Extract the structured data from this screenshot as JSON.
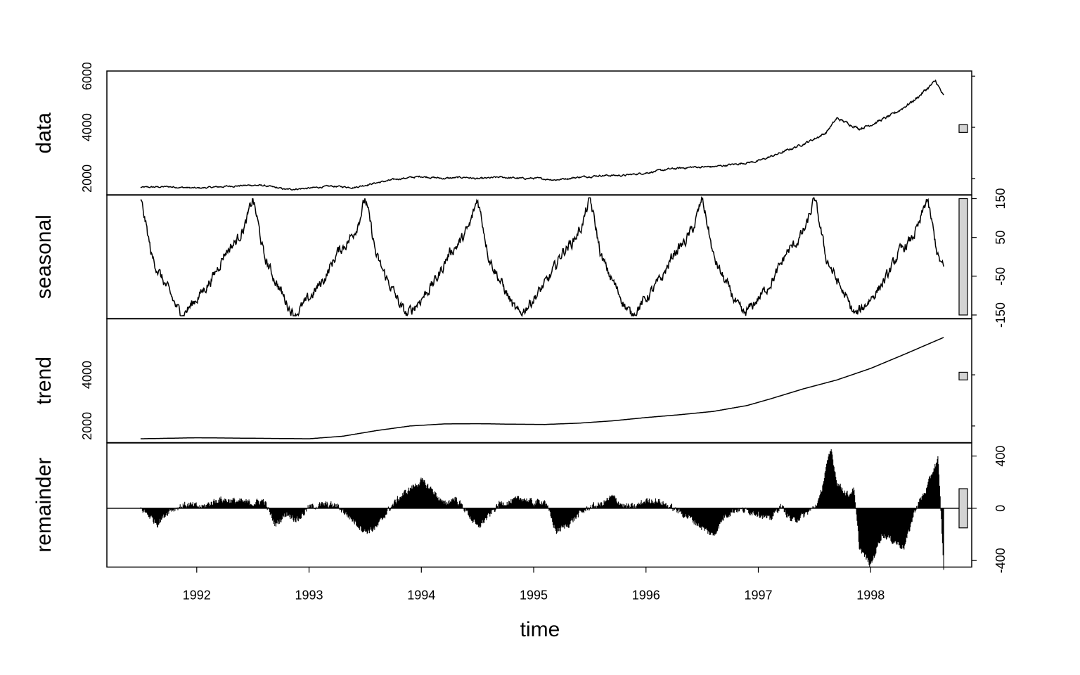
{
  "chart_data": {
    "type": "line",
    "title": "",
    "xlabel": "time",
    "xlim": [
      1991.2,
      1998.9
    ],
    "x_ticks": [
      1992,
      1993,
      1994,
      1995,
      1996,
      1997,
      1998
    ],
    "x_tick_labels": [
      "1992",
      "1993",
      "1994",
      "1995",
      "1996",
      "1997",
      "1998"
    ],
    "time_start": 1991.5,
    "time_end": 1998.65,
    "panels": [
      {
        "name": "data",
        "ylabel": "data",
        "ylim": [
          1350,
          6200
        ],
        "y_ticks": [
          2000,
          4000,
          6000
        ],
        "y_tick_labels": [
          "2000",
          "4000",
          "6000"
        ],
        "y_axis_side": "left",
        "range_bar": [
          3800,
          4100
        ],
        "series": {
          "x": [
            1991.5,
            1991.75,
            1992.0,
            1992.3,
            1992.5,
            1992.6,
            1992.8,
            1993.0,
            1993.2,
            1993.4,
            1993.6,
            1993.8,
            1994.0,
            1994.2,
            1994.4,
            1994.5,
            1994.7,
            1994.9,
            1995.0,
            1995.2,
            1995.4,
            1995.6,
            1995.8,
            1996.0,
            1996.2,
            1996.4,
            1996.6,
            1996.8,
            1997.0,
            1997.2,
            1997.4,
            1997.5,
            1997.6,
            1997.7,
            1997.8,
            1997.9,
            1998.0,
            1998.2,
            1998.4,
            1998.5,
            1998.58,
            1998.65
          ],
          "y": [
            1650,
            1680,
            1620,
            1700,
            1740,
            1720,
            1570,
            1620,
            1700,
            1650,
            1830,
            1990,
            2080,
            2000,
            2050,
            1980,
            2050,
            2000,
            2010,
            1950,
            2050,
            2120,
            2120,
            2220,
            2360,
            2440,
            2460,
            2560,
            2680,
            3000,
            3350,
            3550,
            3780,
            4350,
            4150,
            3950,
            4100,
            4500,
            5100,
            5500,
            5800,
            5200
          ]
        }
      },
      {
        "name": "seasonal",
        "ylabel": "seasonal",
        "ylim": [
          -160,
          160
        ],
        "y_ticks": [
          -150,
          -50,
          50,
          150
        ],
        "y_tick_labels": [
          "-150",
          "-50",
          "50",
          "150"
        ],
        "y_axis_side": "right",
        "range_bar": [
          -150,
          150
        ],
        "seasonal_shape": {
          "phase": [
            0.0,
            0.04,
            0.1,
            0.18,
            0.27,
            0.32,
            0.37,
            0.45,
            0.55,
            0.65,
            0.75,
            0.85,
            0.93,
            0.96,
            1.0
          ],
          "value": [
            150,
            95,
            0,
            -50,
            -100,
            -130,
            -150,
            -125,
            -90,
            -50,
            10,
            40,
            80,
            110,
            150
          ]
        }
      },
      {
        "name": "trend",
        "ylabel": "trend",
        "ylim": [
          1350,
          6200
        ],
        "y_ticks": [
          2000,
          4000
        ],
        "y_tick_labels": [
          "2000",
          "4000"
        ],
        "y_axis_side": "left",
        "range_bar": [
          3800,
          4100
        ],
        "series": {
          "x": [
            1991.5,
            1992.0,
            1992.5,
            1993.0,
            1993.3,
            1993.6,
            1993.9,
            1994.2,
            1994.5,
            1994.8,
            1995.1,
            1995.4,
            1995.7,
            1996.0,
            1996.3,
            1996.6,
            1996.9,
            1997.1,
            1997.4,
            1997.7,
            1998.0,
            1998.3,
            1998.65
          ],
          "y": [
            1500,
            1540,
            1520,
            1500,
            1600,
            1820,
            2000,
            2080,
            2090,
            2070,
            2060,
            2110,
            2200,
            2330,
            2440,
            2570,
            2800,
            3050,
            3450,
            3800,
            4250,
            4800,
            5460
          ]
        }
      },
      {
        "name": "remainder",
        "ylabel": "remainder",
        "ylim": [
          -450,
          500
        ],
        "y_ticks": [
          -400,
          0,
          400
        ],
        "y_tick_labels": [
          "-400",
          "0",
          "400"
        ],
        "y_axis_side": "right",
        "range_bar": [
          -150,
          150
        ],
        "series": {
          "x": [
            1991.5,
            1991.58,
            1991.65,
            1991.75,
            1991.9,
            1992.05,
            1992.2,
            1992.4,
            1992.5,
            1992.6,
            1992.7,
            1992.8,
            1992.9,
            1993.0,
            1993.15,
            1993.25,
            1993.4,
            1993.5,
            1993.6,
            1993.7,
            1993.8,
            1993.9,
            1994.0,
            1994.1,
            1994.2,
            1994.3,
            1994.4,
            1994.5,
            1994.6,
            1994.7,
            1994.8,
            1994.9,
            1995.0,
            1995.1,
            1995.2,
            1995.3,
            1995.4,
            1995.5,
            1995.6,
            1995.7,
            1995.8,
            1995.9,
            1996.0,
            1996.1,
            1996.2,
            1996.3,
            1996.4,
            1996.5,
            1996.6,
            1996.7,
            1996.8,
            1996.9,
            1997.0,
            1997.1,
            1997.2,
            1997.3,
            1997.4,
            1997.5,
            1997.55,
            1997.6,
            1997.65,
            1997.7,
            1997.8,
            1997.85,
            1997.9,
            1998.0,
            1998.1,
            1998.2,
            1998.3,
            1998.4,
            1998.5,
            1998.55,
            1998.6,
            1998.63,
            1998.65
          ],
          "y": [
            0,
            -60,
            -120,
            -20,
            30,
            10,
            70,
            50,
            40,
            60,
            -130,
            -40,
            -90,
            10,
            30,
            20,
            -100,
            -180,
            -150,
            -20,
            80,
            150,
            210,
            140,
            30,
            80,
            -20,
            -150,
            -60,
            40,
            50,
            80,
            40,
            60,
            -180,
            -130,
            -50,
            10,
            30,
            90,
            20,
            10,
            60,
            60,
            20,
            -30,
            -80,
            -150,
            -210,
            -60,
            -10,
            -20,
            -40,
            -90,
            20,
            -100,
            -60,
            10,
            80,
            300,
            450,
            200,
            100,
            150,
            -300,
            -440,
            -200,
            -250,
            -300,
            0,
            150,
            280,
            380,
            -100,
            -460
          ]
        }
      }
    ]
  }
}
